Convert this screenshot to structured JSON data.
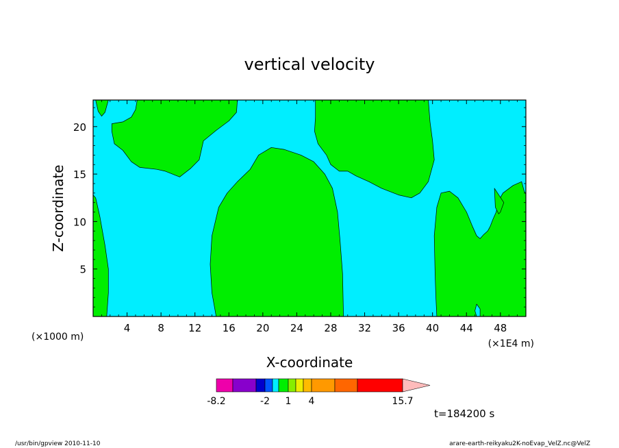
{
  "chart_data": {
    "type": "filled-contour",
    "title": "vertical velocity",
    "xlabel": "X-coordinate",
    "ylabel": "Z-coordinate",
    "x_unit_left": "(×1000 m)",
    "x_unit_right": "(×1E4 m)",
    "xlim": [
      0,
      51
    ],
    "ylim": [
      0,
      22.8
    ],
    "xticks": [
      4,
      8,
      12,
      16,
      20,
      24,
      28,
      32,
      36,
      40,
      44,
      48
    ],
    "yticks": [
      5,
      10,
      15,
      20
    ],
    "background_color": "#00EEFF",
    "region_color": "#00EE00",
    "regions": [
      {
        "name": "top-left-sliver",
        "points": [
          [
            0.3,
            22.8
          ],
          [
            1.8,
            22.8
          ],
          [
            1.4,
            21.5
          ],
          [
            1.0,
            21.1
          ],
          [
            0.6,
            21.6
          ]
        ]
      },
      {
        "name": "upper-left-blob",
        "points": [
          [
            5.2,
            22.8
          ],
          [
            17.0,
            22.8
          ],
          [
            16.9,
            21.5
          ],
          [
            16.0,
            20.6
          ],
          [
            14.5,
            19.6
          ],
          [
            13.0,
            18.5
          ],
          [
            12.5,
            16.5
          ],
          [
            11.5,
            15.6
          ],
          [
            10.2,
            14.7
          ],
          [
            8.5,
            15.3
          ],
          [
            7.5,
            15.5
          ],
          [
            5.5,
            15.7
          ],
          [
            4.5,
            16.3
          ],
          [
            3.5,
            17.5
          ],
          [
            2.5,
            18.2
          ],
          [
            2.2,
            19.5
          ],
          [
            2.2,
            20.3
          ],
          [
            3.5,
            20.5
          ],
          [
            4.5,
            21.0
          ],
          [
            5.0,
            21.8
          ]
        ]
      },
      {
        "name": "center-column",
        "points": [
          [
            14.5,
            0
          ],
          [
            29.5,
            0
          ],
          [
            29.4,
            4.5
          ],
          [
            29.1,
            8
          ],
          [
            28.8,
            11
          ],
          [
            28.2,
            13.5
          ],
          [
            27.3,
            15.0
          ],
          [
            26.0,
            16.3
          ],
          [
            24.5,
            17.0
          ],
          [
            22.5,
            17.6
          ],
          [
            21.0,
            17.8
          ],
          [
            19.5,
            17.0
          ],
          [
            18.5,
            15.5
          ],
          [
            17.0,
            14.2
          ],
          [
            15.8,
            13.0
          ],
          [
            14.8,
            11.5
          ],
          [
            14.0,
            8.5
          ],
          [
            13.8,
            5.5
          ],
          [
            14.0,
            2.5
          ]
        ]
      },
      {
        "name": "upper-right-blob",
        "points": [
          [
            26.2,
            22.8
          ],
          [
            39.5,
            22.8
          ],
          [
            39.7,
            20.5
          ],
          [
            40.0,
            18.5
          ],
          [
            40.2,
            16.5
          ],
          [
            39.5,
            14.2
          ],
          [
            38.5,
            13.0
          ],
          [
            37.5,
            12.5
          ],
          [
            36.0,
            12.8
          ],
          [
            34.0,
            13.5
          ],
          [
            32.5,
            14.2
          ],
          [
            31.0,
            14.8
          ],
          [
            30.0,
            15.3
          ],
          [
            29.0,
            15.3
          ],
          [
            28.0,
            16.0
          ],
          [
            27.5,
            17.0
          ],
          [
            26.5,
            18.2
          ],
          [
            26.1,
            19.5
          ],
          [
            26.2,
            21.0
          ]
        ]
      },
      {
        "name": "left-edge-strip",
        "points": [
          [
            0,
            0
          ],
          [
            1.6,
            0
          ],
          [
            1.8,
            2.5
          ],
          [
            1.8,
            5
          ],
          [
            1.4,
            7.5
          ],
          [
            0.8,
            10.5
          ],
          [
            0.3,
            12.5
          ],
          [
            0,
            12.8
          ]
        ]
      },
      {
        "name": "lower-right-region",
        "points": [
          [
            40.5,
            0
          ],
          [
            45.2,
            0
          ],
          [
            45.0,
            0.6
          ],
          [
            45.2,
            1.3
          ],
          [
            45.6,
            0.8
          ],
          [
            45.6,
            0
          ],
          [
            51,
            0
          ],
          [
            51,
            12.9
          ],
          [
            50.8,
            13.2
          ],
          [
            50.5,
            14.2
          ],
          [
            49.5,
            13.8
          ],
          [
            48.3,
            13.0
          ],
          [
            47.8,
            12.2
          ],
          [
            47.5,
            11.0
          ],
          [
            47.1,
            10.2
          ],
          [
            46.8,
            9.5
          ],
          [
            46.5,
            9.0
          ],
          [
            46.0,
            8.6
          ],
          [
            45.6,
            8.2
          ],
          [
            45.2,
            8.5
          ],
          [
            44.7,
            9.5
          ],
          [
            44.0,
            11.0
          ],
          [
            43.0,
            12.5
          ],
          [
            42.0,
            13.2
          ],
          [
            41.0,
            13.0
          ],
          [
            40.5,
            11.5
          ],
          [
            40.2,
            8.5
          ],
          [
            40.3,
            4.5
          ],
          [
            40.4,
            2
          ]
        ]
      },
      {
        "name": "right-notch-patch",
        "points": [
          [
            47.3,
            13.5
          ],
          [
            48.4,
            12.0
          ],
          [
            48.0,
            11.0
          ],
          [
            47.8,
            10.8
          ],
          [
            47.4,
            11.5
          ]
        ]
      }
    ],
    "colorbar": {
      "colors": [
        "#EE00AA",
        "#8800CC",
        "#0000CC",
        "#0055FF",
        "#00EEFF",
        "#00EE00",
        "#88EE00",
        "#EEEE00",
        "#FFBB00",
        "#FF9900",
        "#FF6600",
        "#FF0000",
        "#FF7777"
      ],
      "triangle_color": "#FFBBBB",
      "tick_labels": [
        "-8.2",
        "-2",
        "1",
        "4",
        "15.7"
      ]
    },
    "time_label": "t=184200 s"
  },
  "footer": {
    "left": "/usr/bin/gpview   2010-11-10",
    "right": "arare-earth-reikyaku2K-noEvap_VelZ.nc@VelZ"
  }
}
